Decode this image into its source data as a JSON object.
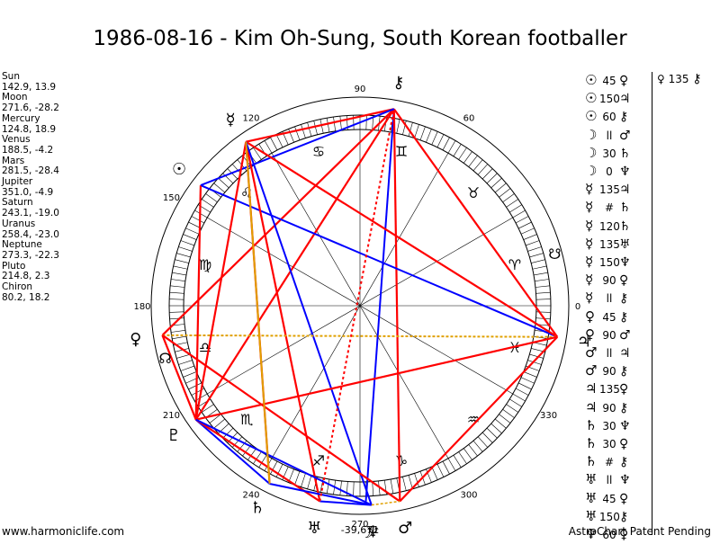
{
  "title": "1986-08-16 - Kim Oh-Sung, South Korean footballer",
  "planets": [
    {
      "name": "Sun",
      "glyph": "☉",
      "lon": 142.9,
      "lat": 13.9,
      "coords": "142.9, 13.9"
    },
    {
      "name": "Moon",
      "glyph": "☽",
      "lon": 271.6,
      "lat": -28.2,
      "coords": "271.6, -28.2"
    },
    {
      "name": "Mercury",
      "glyph": "☿",
      "lon": 124.8,
      "lat": 18.9,
      "coords": "124.8, 18.9"
    },
    {
      "name": "Venus",
      "glyph": "♀",
      "lon": 188.5,
      "lat": -4.2,
      "coords": "188.5, -4.2"
    },
    {
      "name": "Mars",
      "glyph": "♂",
      "lon": 281.5,
      "lat": -28.4,
      "coords": "281.5, -28.4"
    },
    {
      "name": "Jupiter",
      "glyph": "♃",
      "lon": 351.0,
      "lat": -4.9,
      "coords": "351.0, -4.9"
    },
    {
      "name": "Saturn",
      "glyph": "♄",
      "lon": 243.1,
      "lat": -19.0,
      "coords": "243.1, -19.0"
    },
    {
      "name": "Uranus",
      "glyph": "♅",
      "lon": 258.4,
      "lat": -23.0,
      "coords": "258.4, -23.0"
    },
    {
      "name": "Neptune",
      "glyph": "♆",
      "lon": 273.3,
      "lat": -22.3,
      "coords": "273.3, -22.3"
    },
    {
      "name": "Pluto",
      "glyph": "♇",
      "lon": 214.8,
      "lat": 2.3,
      "coords": "214.8, 2.3"
    },
    {
      "name": "Chiron",
      "glyph": "⚷",
      "lon": 80.2,
      "lat": 18.2,
      "coords": "80.2, 18.2"
    }
  ],
  "node_glyph": "☊",
  "south_node_glyph": "☋",
  "degree_labels": [
    "90",
    "60",
    "120",
    "150",
    "180",
    "0",
    "210",
    "330",
    "240",
    "270",
    "300"
  ],
  "wheel_readout": "-39,671",
  "zodiac": [
    "♈",
    "♉",
    "♊",
    "♋",
    "♌",
    "♍",
    "♎",
    "♏",
    "♐",
    "♑",
    "♒",
    "♓"
  ],
  "aspects": [
    {
      "a": "☉",
      "sym": "45",
      "b": "♀"
    },
    {
      "a": "☉",
      "sym": "150",
      "b": "♃"
    },
    {
      "a": "☉",
      "sym": "60",
      "b": "⚷"
    },
    {
      "a": "☽",
      "sym": "ll",
      "b": "♂"
    },
    {
      "a": "☽",
      "sym": "30",
      "b": "♄"
    },
    {
      "a": "☽",
      "sym": "0",
      "b": "♆"
    },
    {
      "a": "☿",
      "sym": "135",
      "b": "♃"
    },
    {
      "a": "☿",
      "sym": "#",
      "b": "♄"
    },
    {
      "a": "☿",
      "sym": "120",
      "b": "♄"
    },
    {
      "a": "☿",
      "sym": "135",
      "b": "♅"
    },
    {
      "a": "☿",
      "sym": "150",
      "b": "♆"
    },
    {
      "a": "☿",
      "sym": "90",
      "b": "♀"
    },
    {
      "a": "☿",
      "sym": "ll",
      "b": "⚷"
    },
    {
      "a": "♀",
      "sym": "45",
      "b": "⚷"
    },
    {
      "a": "♀",
      "sym": "90",
      "b": "♂"
    },
    {
      "a": "♂",
      "sym": "ll",
      "b": "♃"
    },
    {
      "a": "♂",
      "sym": "90",
      "b": "⚷"
    },
    {
      "a": "♃",
      "sym": "135",
      "b": "♀"
    },
    {
      "a": "♃",
      "sym": "90",
      "b": "⚷"
    },
    {
      "a": "♄",
      "sym": "30",
      "b": "♆"
    },
    {
      "a": "♄",
      "sym": "30",
      "b": "♀"
    },
    {
      "a": "♄",
      "sym": "#",
      "b": "⚷"
    },
    {
      "a": "♅",
      "sym": "ll",
      "b": "♆"
    },
    {
      "a": "♅",
      "sym": "45",
      "b": "♀"
    },
    {
      "a": "♅",
      "sym": "150",
      "b": "⚷"
    },
    {
      "a": "♆",
      "sym": "60",
      "b": "♀"
    }
  ],
  "aspect_extra": {
    "a": "♀",
    "sym": "135",
    "b": "⚷"
  },
  "footer": {
    "left": "www.harmoniclife.com",
    "right": "AstroChart Patent Pending"
  }
}
